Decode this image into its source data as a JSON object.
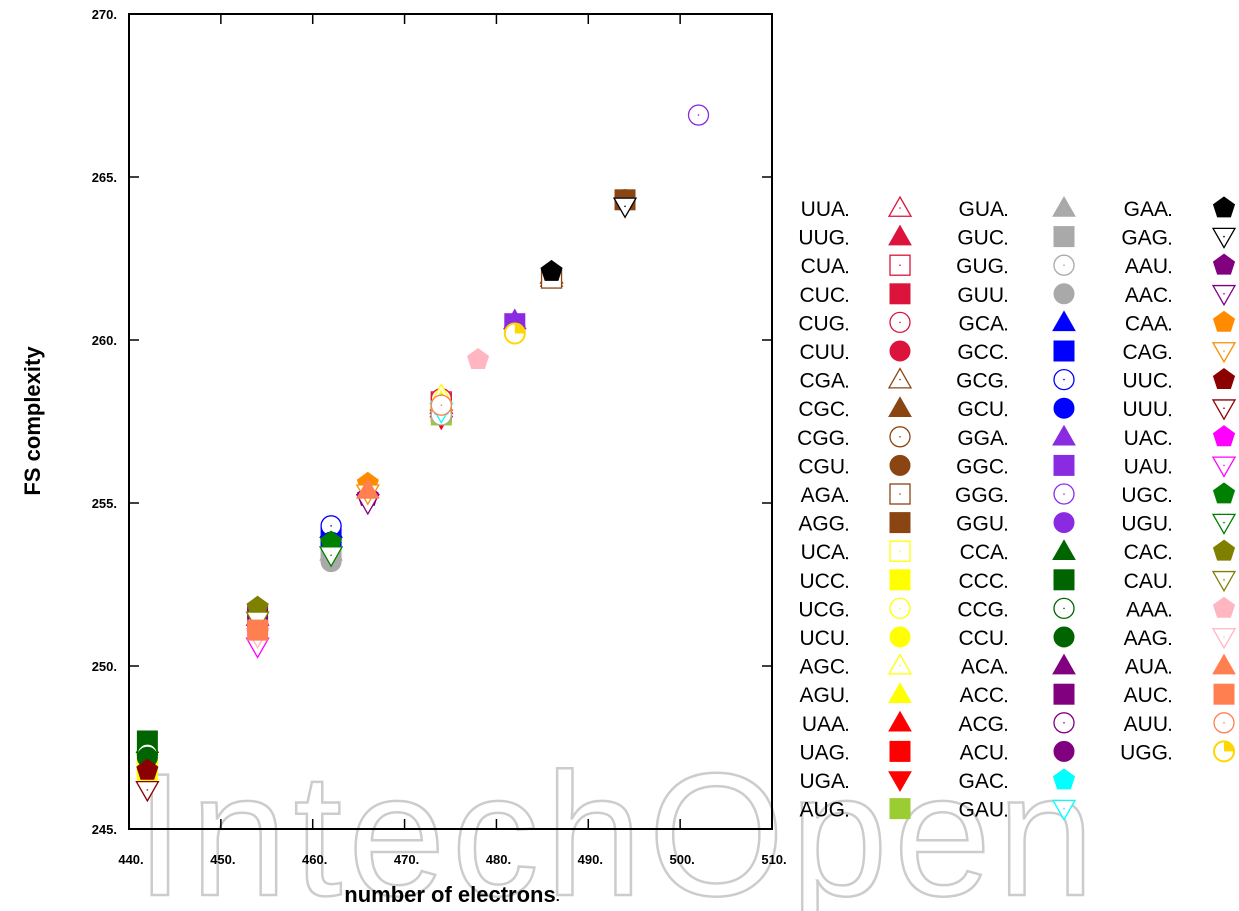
{
  "chart_data": {
    "type": "scatter",
    "xlabel": "number of electrons",
    "ylabel": "FS complexity",
    "xlim": [
      440,
      510
    ],
    "ylim": [
      245,
      270
    ],
    "xticks": [
      "440",
      "450",
      "460",
      "470",
      "480",
      "490",
      "500",
      "510"
    ],
    "yticks": [
      "245",
      "250",
      "255",
      "260",
      "265",
      "270"
    ],
    "grid": false,
    "legend_position": "right",
    "series": [
      {
        "name": "UUA",
        "marker": "triangle-up-open",
        "color": "#dc143c",
        "x": 474,
        "y": 258.0
      },
      {
        "name": "UUG",
        "marker": "triangle-up",
        "color": "#dc143c",
        "x": 474,
        "y": 257.9
      },
      {
        "name": "CUA",
        "marker": "square-open",
        "color": "#dc143c",
        "x": 474,
        "y": 258.1
      },
      {
        "name": "CUC",
        "marker": "square",
        "color": "#dc143c",
        "x": 474,
        "y": 257.9
      },
      {
        "name": "CUG",
        "marker": "circle-open",
        "color": "#dc143c",
        "x": 474,
        "y": 258.2
      },
      {
        "name": "CUU",
        "marker": "circle",
        "color": "#dc143c",
        "x": 474,
        "y": 257.9
      },
      {
        "name": "CGA",
        "marker": "triangle-up-open",
        "color": "#8b4513",
        "x": 486,
        "y": 262.0
      },
      {
        "name": "CGC",
        "marker": "triangle-up",
        "color": "#8b4513",
        "x": 486,
        "y": 261.9
      },
      {
        "name": "CGG",
        "marker": "circle-open",
        "color": "#8b4513",
        "x": 494,
        "y": 264.3
      },
      {
        "name": "CGU",
        "marker": "circle",
        "color": "#8b4513",
        "x": 486,
        "y": 261.9
      },
      {
        "name": "AGA",
        "marker": "square-open",
        "color": "#8b4513",
        "x": 486,
        "y": 261.9
      },
      {
        "name": "AGG",
        "marker": "square",
        "color": "#8b4513",
        "x": 494,
        "y": 264.3
      },
      {
        "name": "UCA",
        "marker": "square-open",
        "color": "#ffff00",
        "x": 442,
        "y": 247.0
      },
      {
        "name": "UCC",
        "marker": "square",
        "color": "#ffff00",
        "x": 442,
        "y": 246.8
      },
      {
        "name": "UCG",
        "marker": "circle-open",
        "color": "#ffff00",
        "x": 442,
        "y": 246.8
      },
      {
        "name": "UCU",
        "marker": "circle",
        "color": "#ffff00",
        "x": 442,
        "y": 246.7
      },
      {
        "name": "AGC",
        "marker": "triangle-up-open",
        "color": "#ffff00",
        "x": 474,
        "y": 258.3
      },
      {
        "name": "AGU",
        "marker": "triangle-up",
        "color": "#ffff00",
        "x": 474,
        "y": 258.1
      },
      {
        "name": "UAA",
        "marker": "triangle-up",
        "color": "#ff0000",
        "x": 474,
        "y": 257.9
      },
      {
        "name": "UAG",
        "marker": "square",
        "color": "#ff0000",
        "x": 474,
        "y": 257.8
      },
      {
        "name": "UGA",
        "marker": "triangle-down",
        "color": "#ff0000",
        "x": 474,
        "y": 257.6
      },
      {
        "name": "AUG",
        "marker": "square",
        "color": "#9acd32",
        "x": 474,
        "y": 257.7
      },
      {
        "name": "GUA",
        "marker": "triangle-up",
        "color": "#a9a9a9",
        "x": 462,
        "y": 253.5
      },
      {
        "name": "GUC",
        "marker": "square",
        "color": "#a9a9a9",
        "x": 462,
        "y": 253.5
      },
      {
        "name": "GUG",
        "marker": "circle-open",
        "color": "#a9a9a9",
        "x": 474,
        "y": 257.7
      },
      {
        "name": "GUU",
        "marker": "circle",
        "color": "#a9a9a9",
        "x": 462,
        "y": 253.2
      },
      {
        "name": "GCA",
        "marker": "triangle-up",
        "color": "#0000ff",
        "x": 462,
        "y": 254.2
      },
      {
        "name": "GCC",
        "marker": "square",
        "color": "#0000ff",
        "x": 462,
        "y": 254.0
      },
      {
        "name": "GCG",
        "marker": "circle-open",
        "color": "#0000ff",
        "x": 462,
        "y": 254.3
      },
      {
        "name": "GCU",
        "marker": "circle",
        "color": "#0000ff",
        "x": 462,
        "y": 253.8
      },
      {
        "name": "GGA",
        "marker": "triangle-up",
        "color": "#8a2be2",
        "x": 482,
        "y": 260.6
      },
      {
        "name": "GGC",
        "marker": "square",
        "color": "#8a2be2",
        "x": 482,
        "y": 260.5
      },
      {
        "name": "GGG",
        "marker": "circle-open",
        "color": "#8a2be2",
        "x": 502,
        "y": 266.9
      },
      {
        "name": "GGU",
        "marker": "circle",
        "color": "#8a2be2",
        "x": 482,
        "y": 260.4
      },
      {
        "name": "CCA",
        "marker": "triangle-up",
        "color": "#006400",
        "x": 442,
        "y": 247.6
      },
      {
        "name": "CCC",
        "marker": "square",
        "color": "#006400",
        "x": 442,
        "y": 247.7
      },
      {
        "name": "CCG",
        "marker": "circle-open",
        "color": "#006400",
        "x": 442,
        "y": 247.3
      },
      {
        "name": "CCU",
        "marker": "circle",
        "color": "#006400",
        "x": 442,
        "y": 247.2
      },
      {
        "name": "ACA",
        "marker": "triangle-up",
        "color": "#800080",
        "x": 454,
        "y": 251.5
      },
      {
        "name": "ACC",
        "marker": "square",
        "color": "#800080",
        "x": 454,
        "y": 251.6
      },
      {
        "name": "ACG",
        "marker": "circle-open",
        "color": "#800080",
        "x": 454,
        "y": 251.3
      },
      {
        "name": "ACU",
        "marker": "circle",
        "color": "#800080",
        "x": 454,
        "y": 251.2
      },
      {
        "name": "GAC",
        "marker": "pentagon",
        "color": "#00ffff",
        "x": 474,
        "y": 258.0
      },
      {
        "name": "GAU",
        "marker": "triangle-down-open",
        "color": "#00ffff",
        "x": 474,
        "y": 257.8
      },
      {
        "name": "GAA",
        "marker": "pentagon",
        "color": "#000000",
        "x": 486,
        "y": 262.1
      },
      {
        "name": "GAG",
        "marker": "triangle-down-open",
        "color": "#000000",
        "x": 494,
        "y": 264.1
      },
      {
        "name": "AAU",
        "marker": "pentagon",
        "color": "#800080",
        "x": 466,
        "y": 255.2
      },
      {
        "name": "AAC",
        "marker": "triangle-down-open",
        "color": "#800080",
        "x": 466,
        "y": 255.0
      },
      {
        "name": "CAA",
        "marker": "pentagon",
        "color": "#ff8c00",
        "x": 466,
        "y": 255.6
      },
      {
        "name": "CAG",
        "marker": "triangle-down-open",
        "color": "#ff8c00",
        "x": 466,
        "y": 255.3
      },
      {
        "name": "UUC",
        "marker": "pentagon",
        "color": "#8b0000",
        "x": 442,
        "y": 246.8
      },
      {
        "name": "UUU",
        "marker": "triangle-down-open",
        "color": "#8b0000",
        "x": 442,
        "y": 246.2
      },
      {
        "name": "UAC",
        "marker": "pentagon",
        "color": "#ff00ff",
        "x": 454,
        "y": 251.0
      },
      {
        "name": "UAU",
        "marker": "triangle-down-open",
        "color": "#ff00ff",
        "x": 454,
        "y": 250.6
      },
      {
        "name": "UGC",
        "marker": "pentagon",
        "color": "#008000",
        "x": 462,
        "y": 253.8
      },
      {
        "name": "UGU",
        "marker": "triangle-down-open",
        "color": "#008000",
        "x": 462,
        "y": 253.4
      },
      {
        "name": "CAC",
        "marker": "pentagon",
        "color": "#808000",
        "x": 454,
        "y": 251.8
      },
      {
        "name": "CAU",
        "marker": "triangle-down-open",
        "color": "#808000",
        "x": 454,
        "y": 251.4
      },
      {
        "name": "AAA",
        "marker": "pentagon",
        "color": "#ffb6c1",
        "x": 478,
        "y": 259.4
      },
      {
        "name": "AAG",
        "marker": "triangle-down-open",
        "color": "#ffb6c1",
        "x": 454,
        "y": 250.9
      },
      {
        "name": "AUA",
        "marker": "triangle-up",
        "color": "#ff7f50",
        "x": 466,
        "y": 255.4
      },
      {
        "name": "AUC",
        "marker": "square",
        "color": "#ff7f50",
        "x": 454,
        "y": 251.1
      },
      {
        "name": "AUU",
        "marker": "circle-open",
        "color": "#ff7f50",
        "x": 474,
        "y": 258.0
      },
      {
        "name": "UGG",
        "marker": "circle-quarter",
        "color": "#ffd700",
        "x": 482,
        "y": 260.2
      }
    ]
  },
  "watermark": "IntechOpen"
}
